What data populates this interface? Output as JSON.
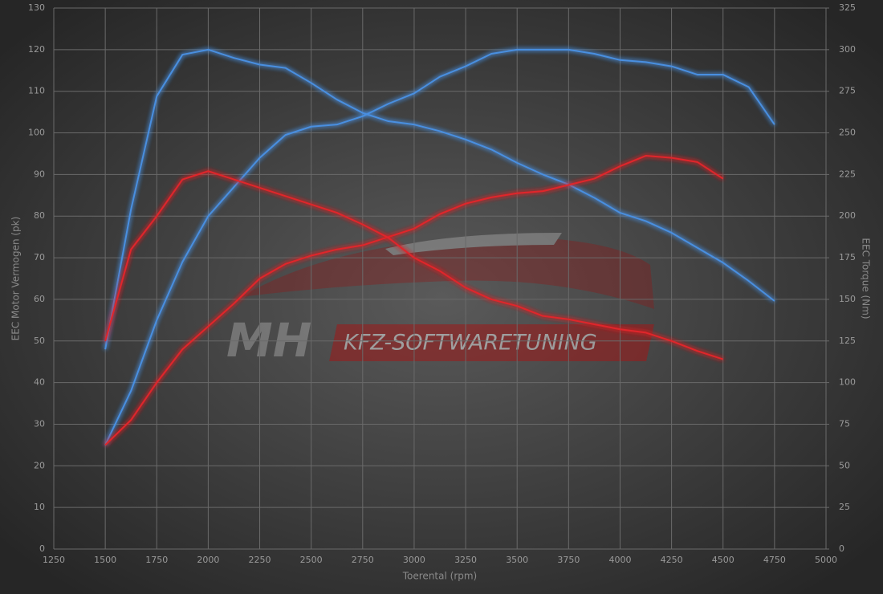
{
  "chart_data": {
    "type": "line",
    "x_label": "Toerental (rpm)",
    "y_label": "EEC Motor Vermogen (pk)",
    "y2_label": "EEC Torque (Nm)",
    "watermark": {
      "logo": "MH",
      "text": "KFZ-SOFTWARETUNING"
    },
    "x": [
      1500,
      1625,
      1750,
      1875,
      2000,
      2125,
      2250,
      2375,
      2500,
      2625,
      2750,
      2875,
      3000,
      3125,
      3250,
      3375,
      3500,
      3625,
      3750,
      3875,
      4000,
      4125,
      4250,
      4375,
      4500,
      4625,
      4750
    ],
    "xlim": [
      1250,
      5000
    ],
    "xticks": [
      1250,
      1500,
      1750,
      2000,
      2250,
      2500,
      2750,
      3000,
      3250,
      3500,
      3750,
      4000,
      4250,
      4500,
      4750,
      5000
    ],
    "ylim": [
      0,
      130
    ],
    "yticks": [
      0,
      10,
      20,
      30,
      40,
      50,
      60,
      70,
      80,
      90,
      100,
      110,
      120,
      130
    ],
    "y2lim": [
      0,
      325
    ],
    "y2ticks": [
      0,
      25,
      50,
      75,
      100,
      125,
      150,
      175,
      200,
      225,
      250,
      275,
      300,
      325
    ],
    "grid": true,
    "series": [
      {
        "color": "#4a8fe0",
        "axis": "y",
        "values": [
          25,
          38,
          55,
          69,
          80,
          87,
          94,
          99.5,
          101.5,
          102,
          104,
          107,
          109.5,
          113.5,
          116,
          119,
          120,
          120,
          120,
          119,
          117.5,
          117,
          116,
          114,
          114,
          111,
          102
        ]
      },
      {
        "color": "#4a8fe0",
        "axis": "y2",
        "values": [
          120,
          204,
          272,
          297,
          300,
          295,
          291,
          289,
          280,
          270,
          262,
          257,
          255,
          251,
          246,
          240,
          232,
          225,
          219,
          211,
          202,
          197,
          190,
          181,
          172,
          161,
          149
        ]
      },
      {
        "color": "#e0262b",
        "axis": "y",
        "values": [
          25,
          31,
          40,
          48,
          53.5,
          59,
          65,
          68.5,
          70.5,
          72,
          73,
          75,
          77,
          80.5,
          83,
          84.5,
          85.5,
          86,
          87.5,
          89,
          92,
          94.5,
          94,
          93,
          89,
          null,
          null
        ]
      },
      {
        "color": "#e0262b",
        "axis": "y2",
        "values": [
          125,
          180,
          200,
          222,
          227,
          222,
          217,
          212,
          207,
          202,
          195,
          187,
          175,
          167,
          157,
          150,
          146,
          140,
          138,
          135,
          132,
          130,
          125,
          119,
          114,
          null,
          null
        ]
      }
    ]
  }
}
